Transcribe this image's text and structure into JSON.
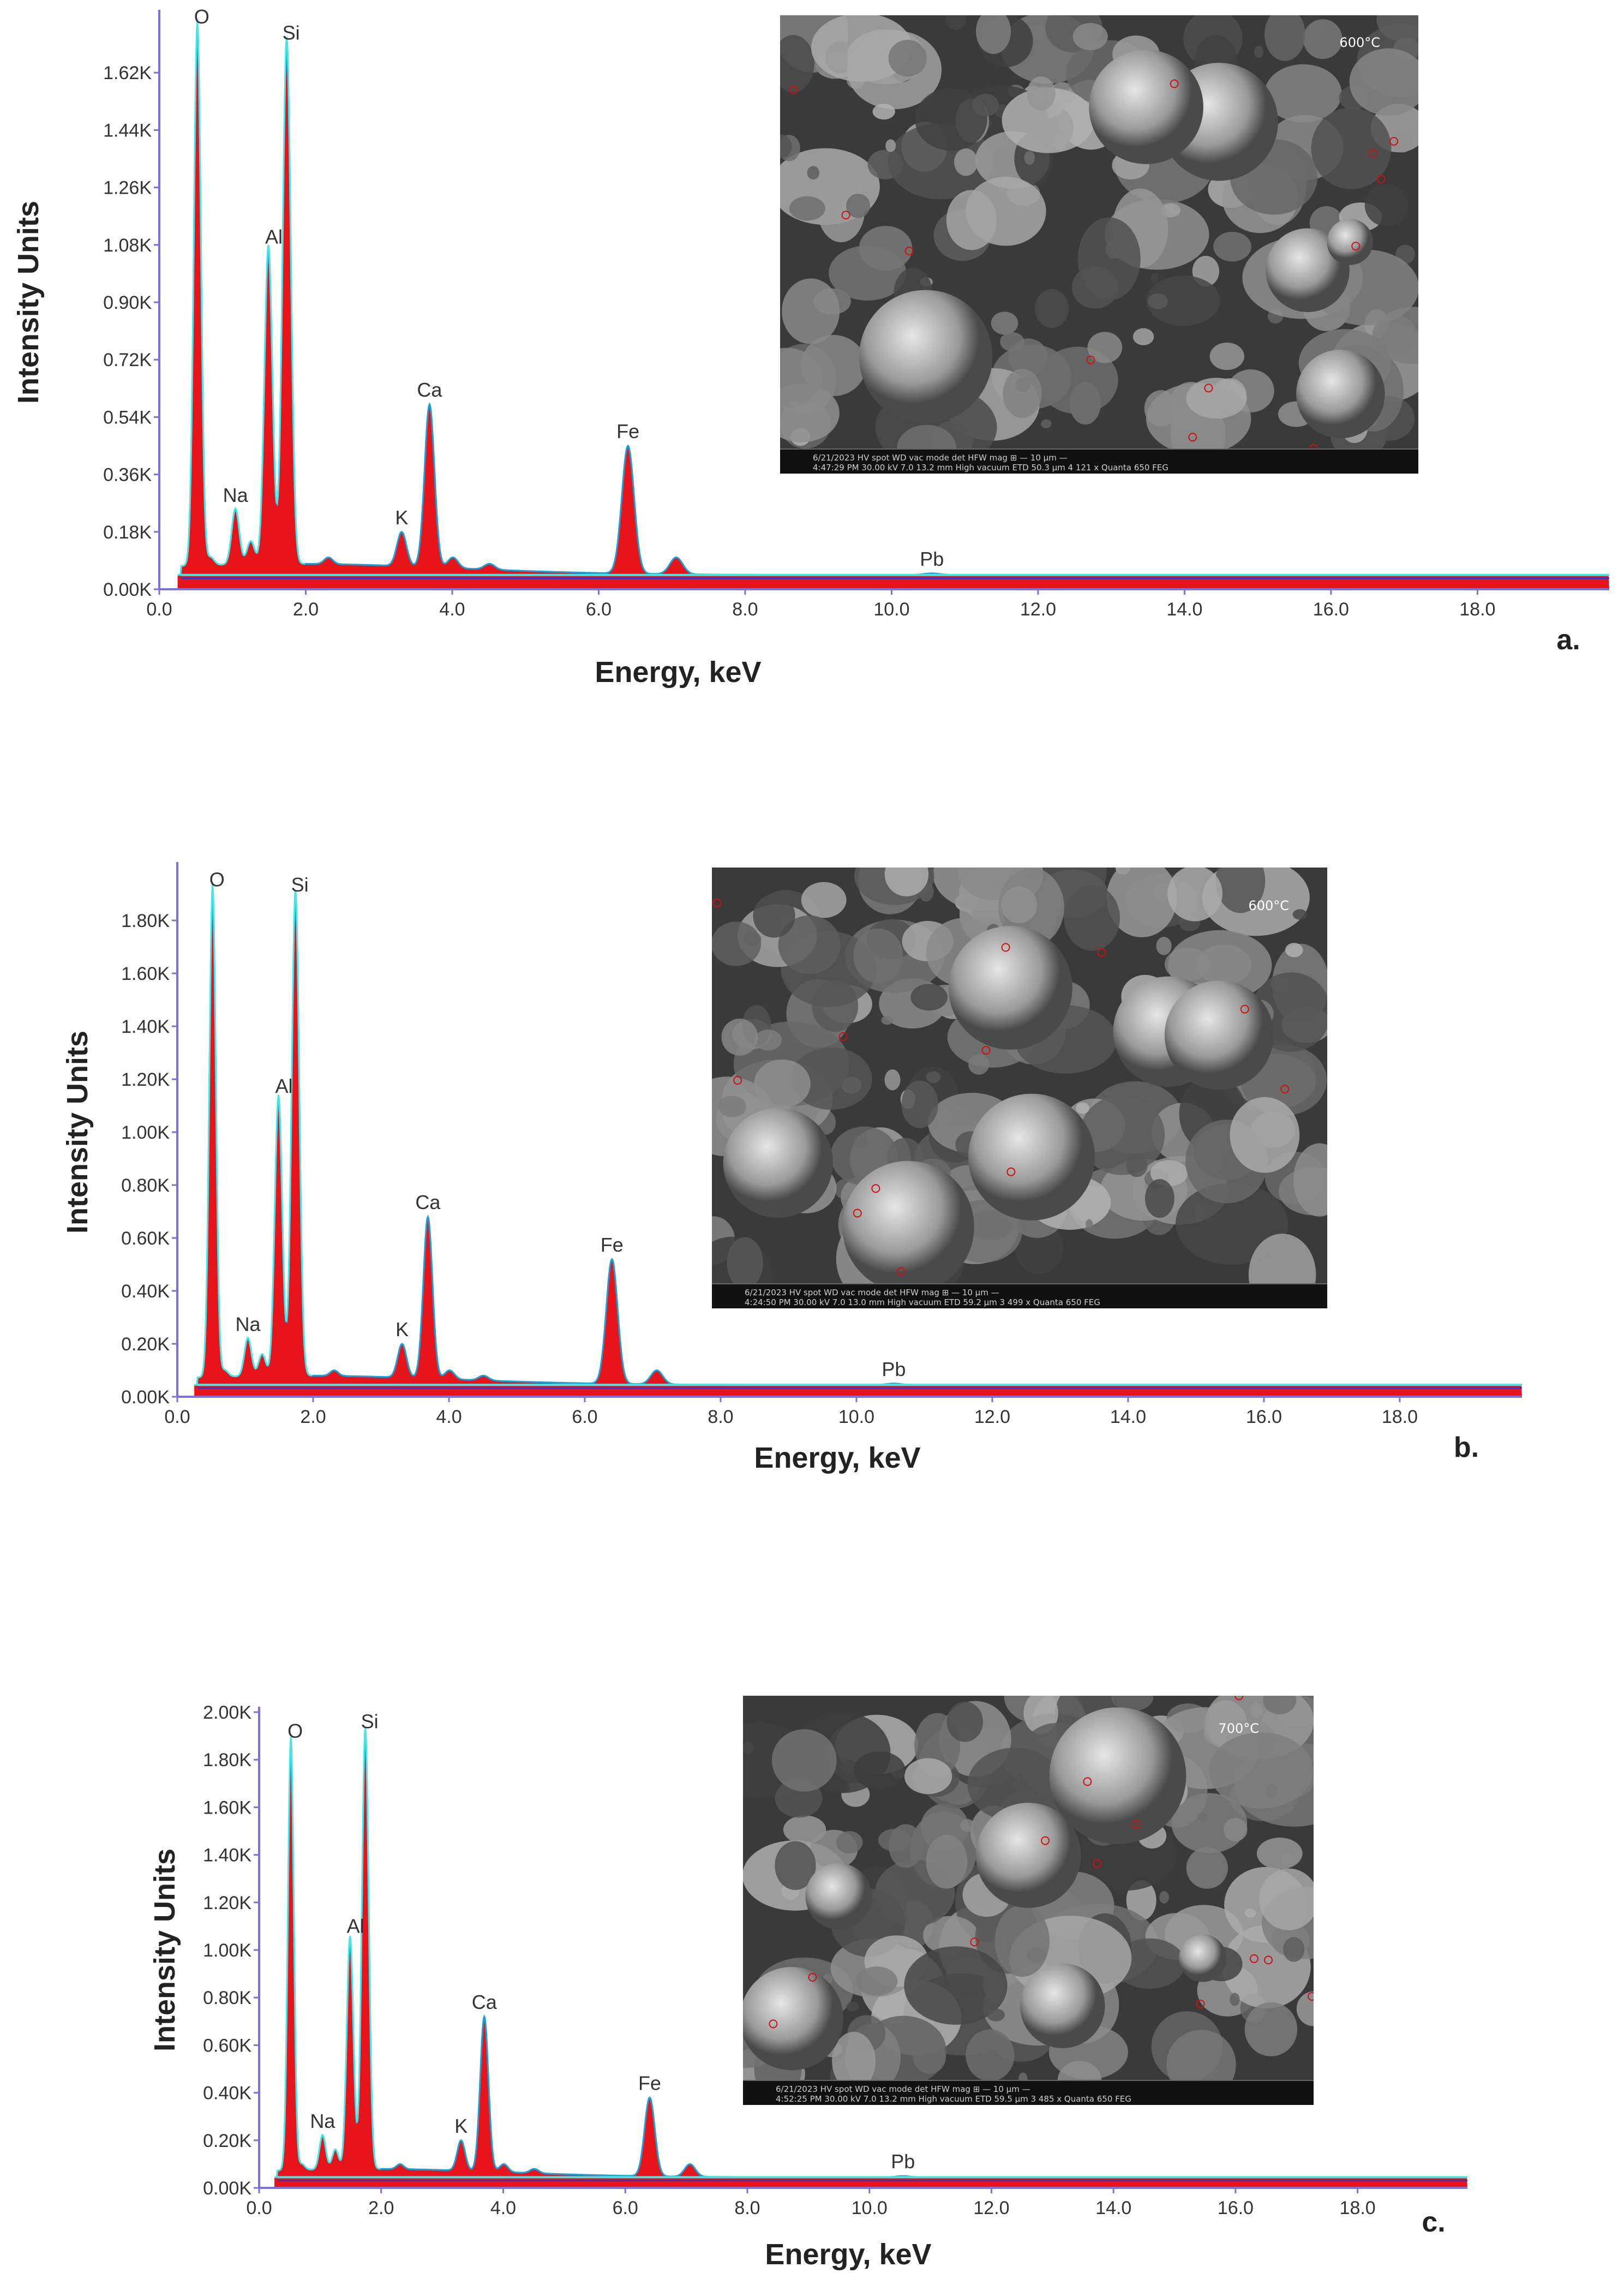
{
  "chart_data": [
    {
      "id": "a",
      "type": "line",
      "panel_label": "a.",
      "ylabel": "Intensity Units",
      "xlabel": "Energy, keV",
      "xlim": [
        0,
        19.8
      ],
      "ylim": [
        0,
        1.8
      ],
      "x_ticks": [
        "0.0",
        "2.0",
        "4.0",
        "6.0",
        "8.0",
        "10.0",
        "12.0",
        "14.0",
        "16.0",
        "18.0"
      ],
      "x_tick_values": [
        0,
        2,
        4,
        6,
        8,
        10,
        12,
        14,
        16,
        18
      ],
      "y_ticks": [
        "0.00K",
        "0.18K",
        "0.36K",
        "0.54K",
        "0.72K",
        "0.90K",
        "1.08K",
        "1.26K",
        "1.44K",
        "1.62K"
      ],
      "y_tick_values": [
        0,
        0.18,
        0.36,
        0.54,
        0.72,
        0.9,
        1.08,
        1.26,
        1.44,
        1.62
      ],
      "y_unit": "K",
      "peaks": [
        {
          "label": "O",
          "energy": 0.52,
          "value": 1.75
        },
        {
          "label": "",
          "energy": 0.7,
          "value": 0.1
        },
        {
          "label": "Na",
          "energy": 1.04,
          "value": 0.25
        },
        {
          "label": "",
          "energy": 1.25,
          "value": 0.15
        },
        {
          "label": "Al",
          "energy": 1.49,
          "value": 1.06
        },
        {
          "label": "Si",
          "energy": 1.74,
          "value": 1.7
        },
        {
          "label": "",
          "energy": 2.31,
          "value": 0.1
        },
        {
          "label": "K",
          "energy": 3.31,
          "value": 0.18
        },
        {
          "label": "Ca",
          "energy": 3.69,
          "value": 0.58
        },
        {
          "label": "",
          "energy": 4.01,
          "value": 0.1
        },
        {
          "label": "",
          "energy": 4.51,
          "value": 0.08
        },
        {
          "label": "Fe",
          "energy": 6.4,
          "value": 0.45
        },
        {
          "label": "",
          "energy": 7.06,
          "value": 0.1
        },
        {
          "label": "Pb",
          "energy": 10.55,
          "value": 0.05
        }
      ],
      "sem": {
        "temperature": "600°C",
        "info": [
          "6/21/2023  HV  spot  WD  vac mode  det  HFW  mag  ⊞  — 10 µm —",
          "4:47:29 PM  30.00 kV  7.0  13.2 mm  High vacuum  ETD  50.3 µm  4 121 x  Quanta 650 FEG"
        ]
      }
    },
    {
      "id": "b",
      "type": "line",
      "panel_label": "b.",
      "ylabel": "Intensity Units",
      "xlabel": "Energy, keV",
      "xlim": [
        0,
        19.8
      ],
      "ylim": [
        0,
        2.0
      ],
      "x_ticks": [
        "0.0",
        "2.0",
        "4.0",
        "6.0",
        "8.0",
        "10.0",
        "12.0",
        "14.0",
        "16.0",
        "18.0"
      ],
      "x_tick_values": [
        0,
        2,
        4,
        6,
        8,
        10,
        12,
        14,
        16,
        18
      ],
      "y_ticks": [
        "0.00K",
        "0.20K",
        "0.40K",
        "0.60K",
        "0.80K",
        "1.00K",
        "1.20K",
        "1.40K",
        "1.60K",
        "1.80K"
      ],
      "y_tick_values": [
        0,
        0.2,
        0.4,
        0.6,
        0.8,
        1.0,
        1.2,
        1.4,
        1.6,
        1.8
      ],
      "y_unit": "K",
      "peaks": [
        {
          "label": "O",
          "energy": 0.52,
          "value": 1.9
        },
        {
          "label": "",
          "energy": 0.7,
          "value": 0.1
        },
        {
          "label": "Na",
          "energy": 1.04,
          "value": 0.22
        },
        {
          "label": "",
          "energy": 1.25,
          "value": 0.16
        },
        {
          "label": "Al",
          "energy": 1.49,
          "value": 1.12
        },
        {
          "label": "Si",
          "energy": 1.74,
          "value": 1.88
        },
        {
          "label": "",
          "energy": 2.31,
          "value": 0.1
        },
        {
          "label": "K",
          "energy": 3.31,
          "value": 0.2
        },
        {
          "label": "Ca",
          "energy": 3.69,
          "value": 0.68
        },
        {
          "label": "",
          "energy": 4.01,
          "value": 0.1
        },
        {
          "label": "",
          "energy": 4.51,
          "value": 0.08
        },
        {
          "label": "Fe",
          "energy": 6.4,
          "value": 0.52
        },
        {
          "label": "",
          "energy": 7.06,
          "value": 0.1
        },
        {
          "label": "Pb",
          "energy": 10.55,
          "value": 0.05
        }
      ],
      "sem": {
        "temperature": "600°C",
        "info": [
          "6/21/2023  HV  spot  WD  vac mode  det  HFW  mag  ⊞  — 10 µm —",
          "4:24:50 PM  30.00 kV  7.0  13.0 mm  High vacuum  ETD  59.2 µm  3 499 x  Quanta 650 FEG"
        ]
      }
    },
    {
      "id": "c",
      "type": "line",
      "panel_label": "c.",
      "ylabel": "Intensity Units",
      "xlabel": "Energy, keV",
      "xlim": [
        0,
        19.8
      ],
      "ylim": [
        0,
        2.0
      ],
      "x_ticks": [
        "0.0",
        "2.0",
        "4.0",
        "6.0",
        "8.0",
        "10.0",
        "12.0",
        "14.0",
        "16.0",
        "18.0"
      ],
      "x_tick_values": [
        0,
        2,
        4,
        6,
        8,
        10,
        12,
        14,
        16,
        18
      ],
      "y_ticks": [
        "0.00K",
        "0.20K",
        "0.40K",
        "0.60K",
        "0.80K",
        "1.00K",
        "1.20K",
        "1.40K",
        "1.60K",
        "1.80K",
        "2.00K"
      ],
      "y_tick_values": [
        0,
        0.2,
        0.4,
        0.6,
        0.8,
        1.0,
        1.2,
        1.4,
        1.6,
        1.8,
        2.0
      ],
      "y_unit": "K",
      "peaks": [
        {
          "label": "O",
          "energy": 0.52,
          "value": 1.86
        },
        {
          "label": "",
          "energy": 0.7,
          "value": 0.1
        },
        {
          "label": "Na",
          "energy": 1.04,
          "value": 0.22
        },
        {
          "label": "",
          "energy": 1.25,
          "value": 0.16
        },
        {
          "label": "Al",
          "energy": 1.49,
          "value": 1.04
        },
        {
          "label": "Si",
          "energy": 1.74,
          "value": 1.9
        },
        {
          "label": "",
          "energy": 2.31,
          "value": 0.1
        },
        {
          "label": "K",
          "energy": 3.31,
          "value": 0.2
        },
        {
          "label": "Ca",
          "energy": 3.69,
          "value": 0.72
        },
        {
          "label": "",
          "energy": 4.01,
          "value": 0.1
        },
        {
          "label": "",
          "energy": 4.51,
          "value": 0.08
        },
        {
          "label": "Fe",
          "energy": 6.4,
          "value": 0.38
        },
        {
          "label": "",
          "energy": 7.06,
          "value": 0.1
        },
        {
          "label": "Pb",
          "energy": 10.55,
          "value": 0.05
        }
      ],
      "sem": {
        "temperature": "700°C",
        "info": [
          "6/21/2023  HV  spot  WD  vac mode  det  HFW  mag  ⊞  — 10 µm —",
          "4:52:25 PM  30.00 kV  7.0  13.2 mm  High vacuum  ETD  59.5 µm  3 485 x  Quanta 650 FEG"
        ]
      }
    }
  ],
  "colors": {
    "fill": "#e8141c",
    "line": "#1aa0d8",
    "outline": "#46e6e6",
    "baseline": "#2f37c8",
    "axis": "#7a72d8",
    "text": "#333333"
  }
}
